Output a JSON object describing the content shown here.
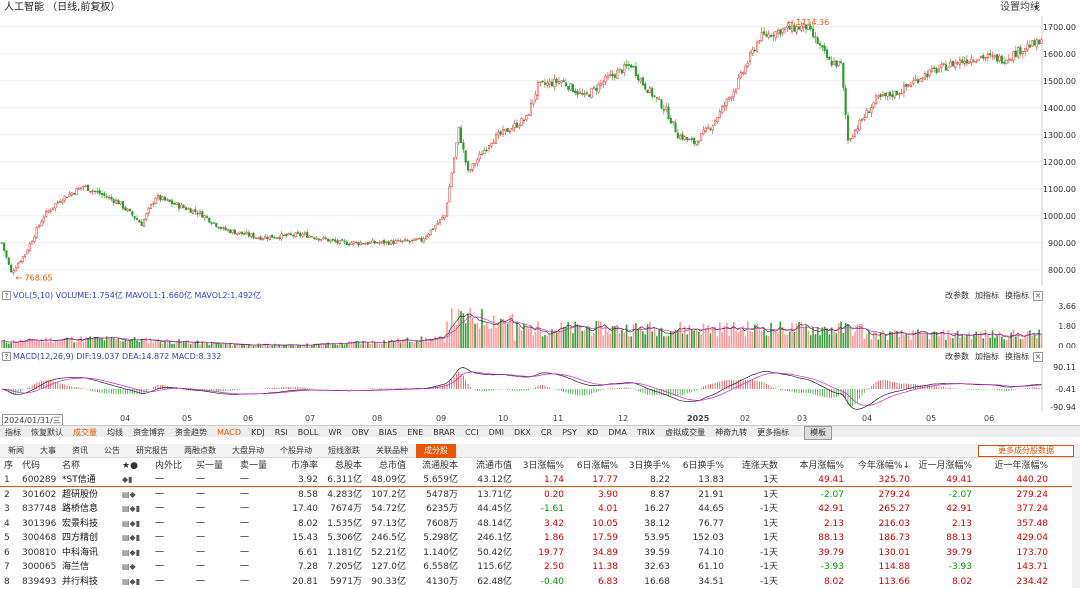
{
  "header": {
    "title": "人工智能 （日线,前复权）",
    "settings": "设置均线"
  },
  "kline": {
    "high_label": "1714.36",
    "low_label": "768.65",
    "yticks": [
      "1700.00",
      "1600.00",
      "1500.00",
      "1400.00",
      "1300.00",
      "1200.00",
      "1100.00",
      "1000.00",
      "900.00",
      "800.00"
    ]
  },
  "vol": {
    "header": "VOL(5,10)  VOLUME:1.754亿  MAVOL1:1.660亿  MAVOL2:1.492亿",
    "yticks": [
      "3.66",
      "1.80",
      "0.00"
    ],
    "buttons": [
      "改参数",
      "加指标",
      "换指标"
    ]
  },
  "macd": {
    "header": "MACD(12,26,9)  DIF:19.037  DEA:14.872  MACD:8.332",
    "yticks": [
      "90.11",
      "-0.41",
      "-90.94"
    ],
    "buttons": [
      "改参数",
      "加指标",
      "换指标"
    ]
  },
  "xaxis": {
    "labels": [
      "2024/01/31/三",
      "04",
      "05",
      "06",
      "07",
      "08",
      "09",
      "10",
      "11",
      "12",
      "2025",
      "02",
      "03",
      "04",
      "05",
      "06"
    ]
  },
  "indicator_tabs": [
    "指标",
    "恢复默认",
    "成交量",
    "均线",
    "资金博弈",
    "资金趋势",
    "MACD",
    "KDJ",
    "RSI",
    "BOLL",
    "WR",
    "OBV",
    "BIAS",
    "ENE",
    "BRAR",
    "CCI",
    "DMI",
    "DKX",
    "CR",
    "PSY",
    "KD",
    "DMA",
    "TRIX",
    "虚拟成交量",
    "神奇九转",
    "更多指标",
    "模板"
  ],
  "info_tabs": [
    "新闻",
    "大事",
    "资讯",
    "公告",
    "研究报告",
    "两融点数",
    "大盘异动",
    "个股异动",
    "短线涨跌",
    "关联品种",
    "成分股"
  ],
  "more_button": "更多成分股数据",
  "table": {
    "columns": [
      "序",
      "代码",
      "名称",
      "★●",
      "内外比",
      "买一量",
      "卖一量",
      "市净率",
      "总股本",
      "总市值",
      "流通股本",
      "流通市值",
      "3日涨幅%",
      "6日涨幅%",
      "3日换手%",
      "6日换手%",
      "连涨天数",
      "本月涨幅%",
      "今年涨幅%↓",
      "近一月涨幅%",
      "近一年涨幅%"
    ],
    "rows": [
      [
        "1",
        "600289",
        "*ST信通",
        "◆▮",
        "一",
        "一",
        "一",
        "3.92",
        "6.311亿",
        "48.09亿",
        "5.659亿",
        "43.12亿",
        "1.74",
        "17.77",
        "8.22",
        "13.83",
        "1天",
        "49.41",
        "325.70",
        "49.41",
        "440.20"
      ],
      [
        "2",
        "301602",
        "超研股份",
        "▤◆",
        "一",
        "一",
        "一",
        "8.58",
        "4.283亿",
        "107.2亿",
        "5478万",
        "13.71亿",
        "0.20",
        "3.90",
        "8.87",
        "21.91",
        "1天",
        "-2.07",
        "279.24",
        "-2.07",
        "279.24"
      ],
      [
        "3",
        "837748",
        "路桥信息",
        "▤◆▮",
        "一",
        "一",
        "一",
        "17.40",
        "7674万",
        "54.72亿",
        "6235万",
        "44.45亿",
        "-1.61",
        "4.01",
        "16.27",
        "44.65",
        "-1天",
        "42.91",
        "265.27",
        "42.91",
        "377.24"
      ],
      [
        "4",
        "301396",
        "宏景科技",
        "▤◆▮",
        "一",
        "一",
        "一",
        "8.02",
        "1.535亿",
        "97.13亿",
        "7608万",
        "48.14亿",
        "3.42",
        "10.05",
        "38.12",
        "76.77",
        "1天",
        "2.13",
        "216.03",
        "2.13",
        "357.48"
      ],
      [
        "5",
        "300468",
        "四方精创",
        "▤◆▮",
        "一",
        "一",
        "一",
        "15.43",
        "5.306亿",
        "246.5亿",
        "5.298亿",
        "246.1亿",
        "1.86",
        "17.59",
        "53.95",
        "152.03",
        "1天",
        "88.13",
        "186.73",
        "88.13",
        "429.04"
      ],
      [
        "6",
        "300810",
        "中科海讯",
        "▤◆▮",
        "一",
        "一",
        "一",
        "6.61",
        "1.181亿",
        "52.21亿",
        "1.140亿",
        "50.42亿",
        "19.77",
        "34.89",
        "39.59",
        "74.10",
        "-1天",
        "39.79",
        "130.01",
        "39.79",
        "173.70"
      ],
      [
        "7",
        "300065",
        "海兰信",
        "▤◆",
        "一",
        "一",
        "一",
        "7.28",
        "7.205亿",
        "127.0亿",
        "6.558亿",
        "115.6亿",
        "2.50",
        "11.38",
        "32.63",
        "61.10",
        "-1天",
        "-3.93",
        "114.88",
        "-3.93",
        "143.71"
      ],
      [
        "8",
        "839493",
        "并行科技",
        "▤◆▮",
        "一",
        "一",
        "一",
        "20.81",
        "5971万",
        "90.33亿",
        "4130万",
        "62.48亿",
        "-0.40",
        "6.83",
        "16.68",
        "34.51",
        "-1天",
        "8.02",
        "113.66",
        "8.02",
        "234.42"
      ]
    ]
  },
  "colors": {
    "up": "#e03030",
    "down": "#2e9a2e",
    "ma5": "#222",
    "ma10": "#cc22cc",
    "accent": "#ee5500"
  }
}
